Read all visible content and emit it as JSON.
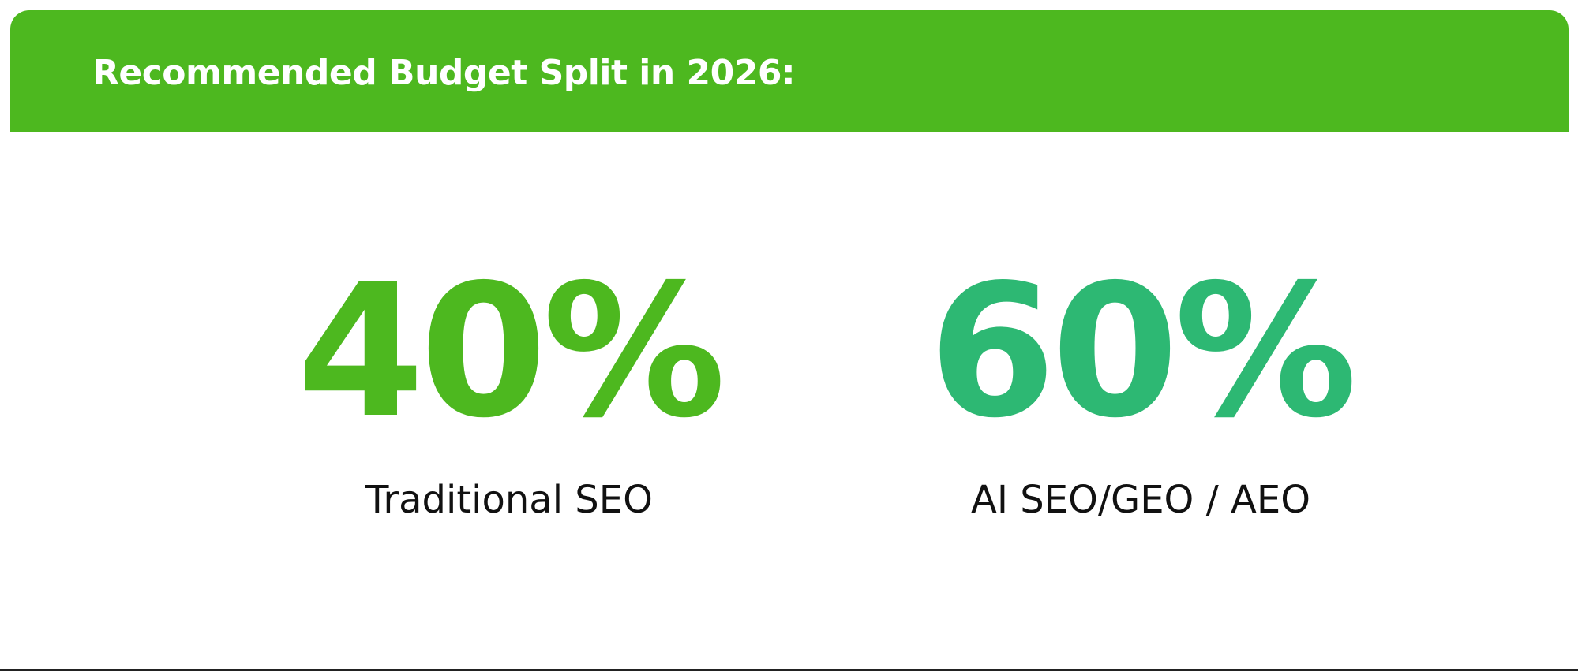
{
  "header": {
    "title": "Recommended Budget Split in 2026:"
  },
  "stats": [
    {
      "value": "40%",
      "label": "Traditional SEO"
    },
    {
      "value": "60%",
      "label": "AI SEO/GEO / AEO"
    }
  ],
  "colors": {
    "header_bg": "#4db81f",
    "header_text": "#ffffff",
    "stat_left": "#4db81f",
    "stat_right": "#2db873",
    "label_text": "#111111",
    "background": "#ffffff"
  }
}
